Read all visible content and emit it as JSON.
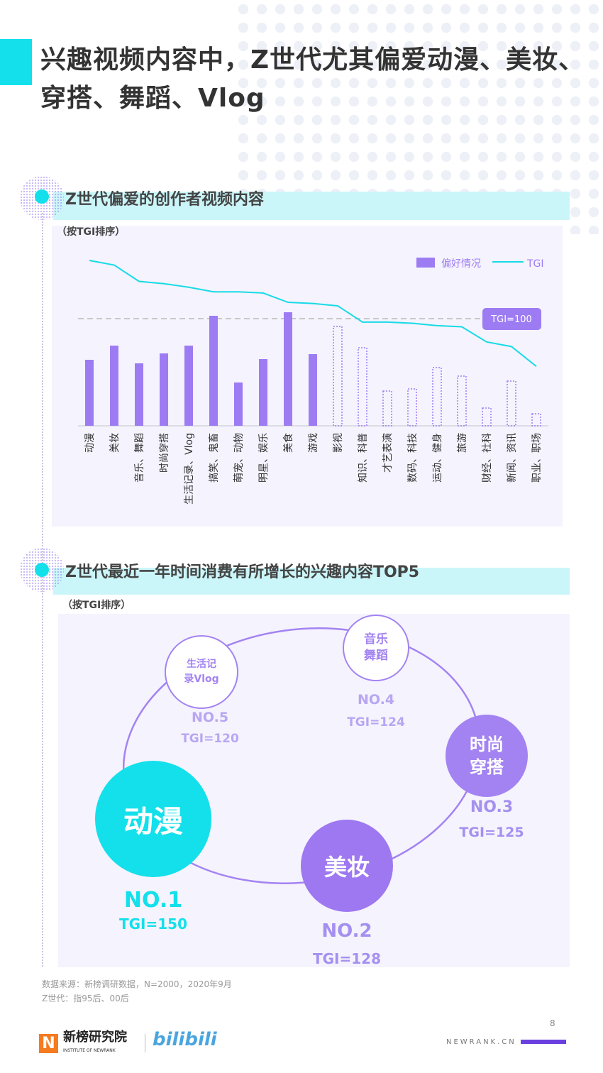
{
  "title": "兴趣视频内容中，Z世代尤其偏爱动漫、美妆、穿搭、舞蹈、Vlog",
  "section1": {
    "title": "Z世代偏爱的创作者视频内容",
    "note": "（按TGI排序）"
  },
  "chart_data": {
    "type": "bar",
    "title": "Z世代偏爱的创作者视频内容",
    "categories": [
      "动漫",
      "美妆",
      "音乐、舞蹈",
      "时尚穿搭",
      "生活记录、Vlog",
      "搞笑、鬼畜",
      "萌宠、动物",
      "明星、娱乐",
      "美食",
      "游戏",
      "影视",
      "知识、科普",
      "才艺表演",
      "数码、科技",
      "运动、健身",
      "旅游",
      "财经、社科",
      "新闻、资讯",
      "职业、职场"
    ],
    "series": [
      {
        "name": "偏好情况",
        "type": "bar",
        "values": [
          93,
          113,
          88,
          102,
          113,
          155,
          61,
          94,
          160,
          101,
          140,
          110,
          49,
          52,
          82,
          70,
          25,
          63,
          17
        ]
      },
      {
        "name": "TGI",
        "type": "line",
        "values": [
          150,
          146,
          132,
          130,
          127,
          123,
          123,
          122,
          114,
          113,
          111,
          97,
          97,
          96,
          94,
          93,
          80,
          76,
          59
        ]
      }
    ],
    "reference_line": {
      "label": "TGI=100",
      "value": 100
    },
    "legend": [
      "偏好情况",
      "TGI"
    ],
    "legend_position": "top-right",
    "colors": {
      "bar": "#9d7cf3",
      "line": "#17dbe6"
    }
  },
  "section2": {
    "title": "Z世代最近一年时间消费有所增长的兴趣内容TOP5",
    "note": "（按TGI排序）",
    "items": [
      {
        "name": "动漫",
        "rank": "NO.1",
        "tgi": "TGI=150"
      },
      {
        "name": "美妆",
        "rank": "NO.2",
        "tgi": "TGI=128"
      },
      {
        "name": "时尚穿搭",
        "l1": "时尚",
        "l2": "穿搭",
        "rank": "NO.3",
        "tgi": "TGI=125"
      },
      {
        "name": "音乐舞蹈",
        "l1": "音乐",
        "l2": "舞蹈",
        "rank": "NO.4",
        "tgi": "TGI=124"
      },
      {
        "name": "生活记录Vlog",
        "l1": "生活记",
        "l2": "录Vlog",
        "rank": "NO.5",
        "tgi": "TGI=120"
      }
    ]
  },
  "footer": {
    "source": "数据来源：新榜调研数据，N=2000，2020年9月",
    "def": "Z世代：指95后、00后",
    "logo1": "新榜研究院",
    "logo1_en": "INSTITUTE OF NEWRANK",
    "logo2": "bilibili",
    "page": "8",
    "site": "NEWRANK.CN"
  }
}
